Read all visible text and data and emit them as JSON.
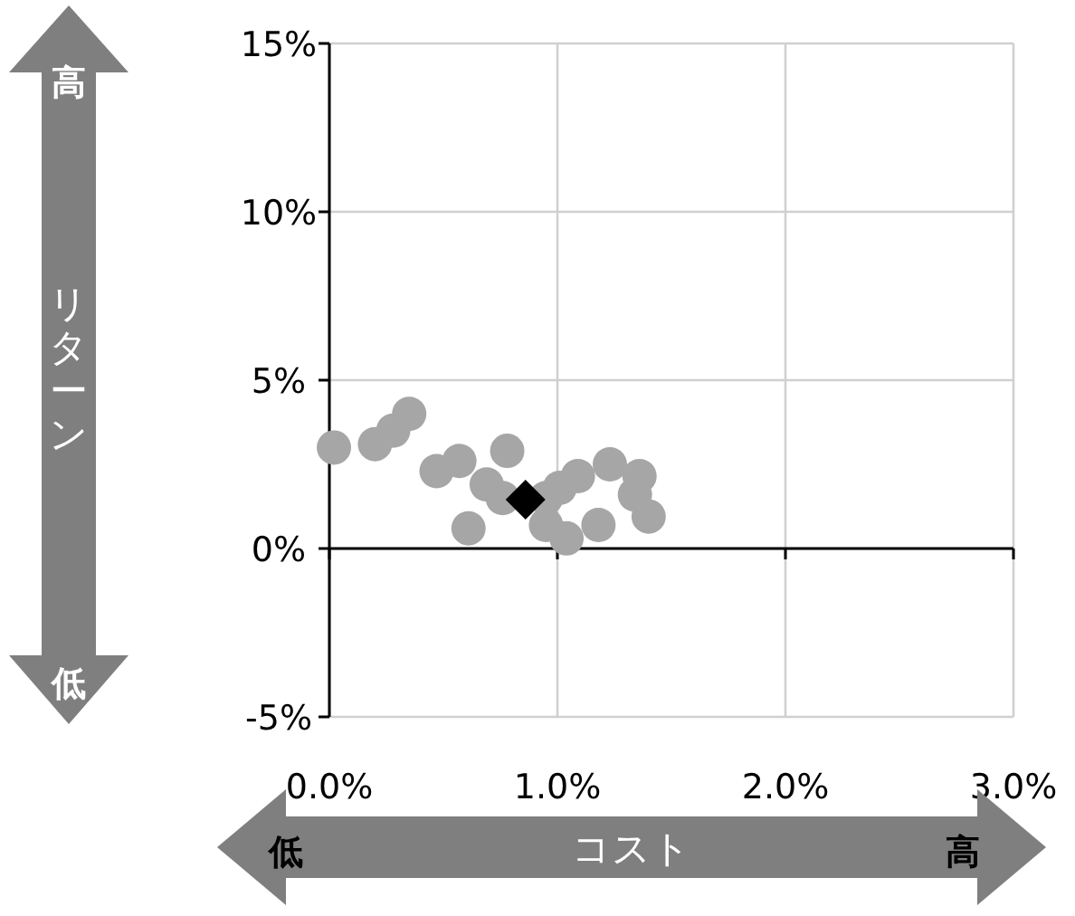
{
  "chart_data": {
    "type": "scatter",
    "xlabel": "コスト",
    "ylabel": "リターン",
    "annotations": [
      "高",
      "低",
      "低",
      "高"
    ],
    "xlim": [
      0,
      3
    ],
    "ylim": [
      -5,
      15
    ],
    "xticks": [
      {
        "value": 0,
        "label": "0.0%"
      },
      {
        "value": 1,
        "label": "1.0%"
      },
      {
        "value": 2,
        "label": "2.0%"
      },
      {
        "value": 3,
        "label": "3.0%"
      }
    ],
    "yticks": [
      {
        "value": -5,
        "label": "-5%"
      },
      {
        "value": 0,
        "label": "0%"
      },
      {
        "value": 5,
        "label": "5%"
      },
      {
        "value": 10,
        "label": "10%"
      },
      {
        "value": 15,
        "label": "15%"
      }
    ],
    "grid": true,
    "ref_lines": [
      {
        "axis": "y",
        "value": 0,
        "color": "#000000"
      }
    ],
    "series": [
      {
        "color": "#a6a6a6",
        "marker": "circle",
        "x": [
          0.02,
          0.2,
          0.28,
          0.35,
          0.47,
          0.57,
          0.78,
          0.61,
          0.69,
          0.76,
          0.95,
          0.95,
          1.04,
          1.01,
          1.09,
          1.18,
          1.23,
          1.36,
          1.34,
          1.4
        ],
        "values": [
          3.0,
          3.1,
          3.5,
          4.0,
          2.3,
          2.6,
          2.9,
          0.6,
          1.9,
          1.5,
          1.5,
          0.7,
          0.3,
          1.8,
          2.15,
          0.7,
          2.5,
          2.15,
          1.6,
          0.95
        ]
      },
      {
        "color": "#000000",
        "marker": "diamond",
        "x": [
          0.86
        ],
        "values": [
          1.45
        ]
      }
    ]
  }
}
